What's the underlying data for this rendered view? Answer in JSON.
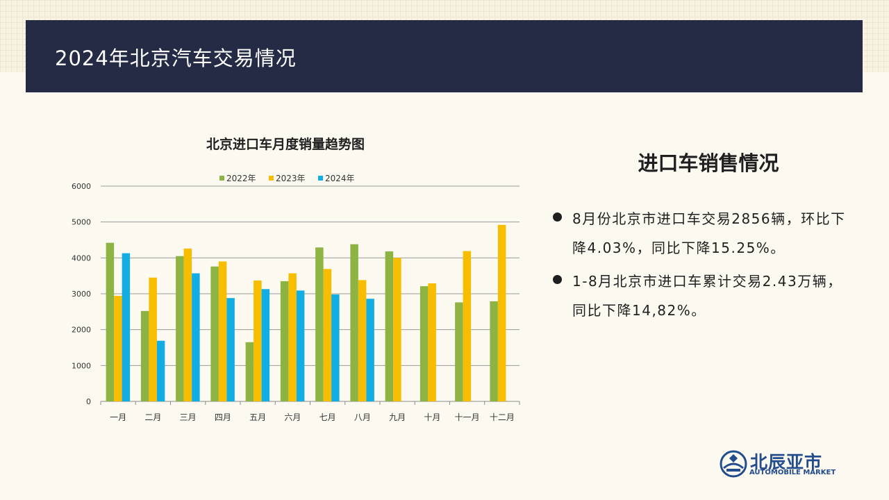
{
  "header": {
    "title": "2024年北京汽车交易情况"
  },
  "side": {
    "heading": "进口车销售情况",
    "bullets": [
      "8月份北京市进口车交易2856辆，环比下降4.03%，同比下降15.25%。",
      "1-8月北京市进口车累计交易2.43万辆，同比下降14,82%。"
    ]
  },
  "logo": {
    "name": "北辰亚市",
    "subtitle": "AUTOMOBILE MARKET"
  },
  "colors": {
    "accent": "#262b45",
    "s2022": "#8db443",
    "s2023": "#f7bd00",
    "s2024": "#12aee3"
  },
  "chart_data": {
    "type": "bar",
    "title": "北京进口车月度销量趋势图",
    "xlabel": "",
    "ylabel": "",
    "ylim": [
      0,
      6000
    ],
    "yticks": [
      0,
      1000,
      2000,
      3000,
      4000,
      5000,
      6000
    ],
    "grid": true,
    "legend": "top",
    "categories": [
      "一月",
      "二月",
      "三月",
      "四月",
      "五月",
      "六月",
      "七月",
      "八月",
      "九月",
      "十月",
      "十一月",
      "十二月"
    ],
    "series": [
      {
        "name": "2022年",
        "color": "#8db443",
        "values": [
          4420,
          2520,
          4050,
          3760,
          1650,
          3350,
          4290,
          4380,
          4180,
          3210,
          2760,
          2790
        ]
      },
      {
        "name": "2023年",
        "color": "#f7bd00",
        "values": [
          2940,
          3450,
          4260,
          3900,
          3370,
          3570,
          3690,
          3380,
          4000,
          3290,
          4190,
          4920
        ]
      },
      {
        "name": "2024年",
        "color": "#12aee3",
        "values": [
          4130,
          1690,
          3570,
          2880,
          3130,
          3090,
          2980,
          2860,
          null,
          null,
          null,
          null
        ]
      }
    ]
  }
}
